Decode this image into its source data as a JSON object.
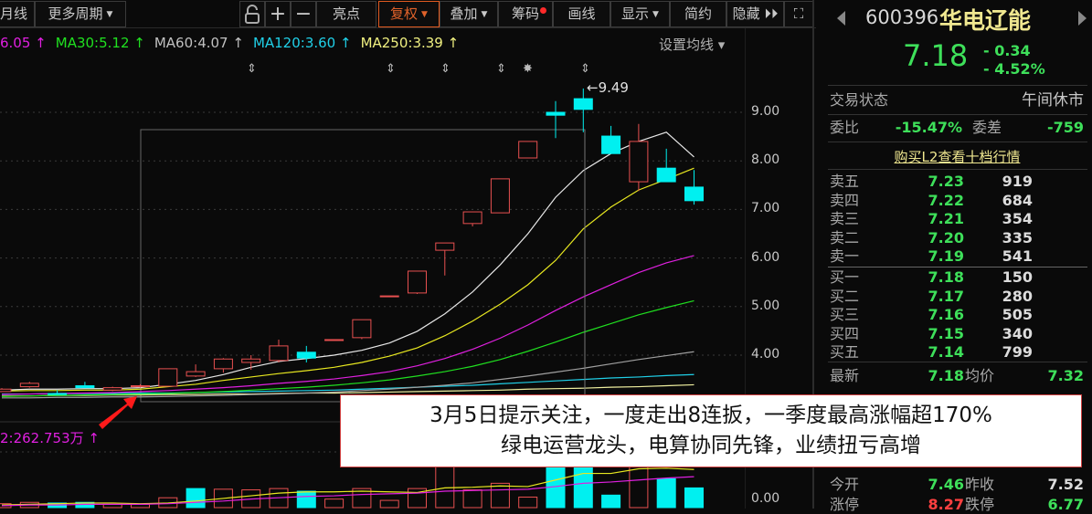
{
  "toolbar": {
    "items": [
      {
        "label": "月线",
        "caret": false
      },
      {
        "label": "更多周期",
        "caret": true
      },
      {
        "label": "亮点",
        "caret": false
      },
      {
        "label": "复权",
        "caret": true,
        "active": true
      },
      {
        "label": "叠加",
        "caret": true
      },
      {
        "label": "筹码",
        "caret": false,
        "dot": true
      },
      {
        "label": "画线",
        "caret": false
      },
      {
        "label": "显示",
        "caret": true
      },
      {
        "label": "简约",
        "caret": false
      },
      {
        "label": "隐藏 ⏵⏵",
        "caret": false
      }
    ],
    "icons": [
      "lock-open-icon",
      "zoom-in-icon",
      "zoom-out-icon",
      "fullscreen-icon"
    ]
  },
  "ma_legend": [
    {
      "text": "6.05 ↑",
      "color": "#e020e0"
    },
    {
      "text": "MA30:5.12 ↑",
      "color": "#20e020"
    },
    {
      "text": "MA60:4.07 ↑",
      "color": "#c0c0c0"
    },
    {
      "text": "MA120:3.60 ↑",
      "color": "#20d0e8"
    },
    {
      "text": "MA250:3.39 ↑",
      "color": "#f0f080"
    }
  ],
  "set_ma": "设置均线 ▾",
  "volume_label": "2:262.753万 ↑",
  "chart_data": {
    "type": "candlestick",
    "y_ticks": [
      "9.00",
      "8.00",
      "7.00",
      "6.00",
      "5.00",
      "4.00"
    ],
    "vol_ticks": [
      "0.00"
    ],
    "high_label": "←9.49",
    "candles": [
      [
        3.25,
        3.32,
        3.24,
        3.3
      ],
      [
        3.35,
        3.45,
        3.33,
        3.42
      ],
      [
        3.21,
        3.28,
        3.18,
        3.19
      ],
      [
        3.37,
        3.45,
        3.32,
        3.33
      ],
      [
        3.28,
        3.35,
        3.26,
        3.33
      ],
      [
        3.35,
        3.4,
        3.33,
        3.37
      ],
      [
        3.36,
        3.72,
        3.36,
        3.72
      ],
      [
        3.57,
        3.81,
        3.55,
        3.66
      ],
      [
        3.72,
        3.94,
        3.64,
        3.92
      ],
      [
        3.85,
        4.0,
        3.7,
        3.92
      ],
      [
        3.89,
        4.32,
        3.85,
        4.19
      ],
      [
        4.06,
        4.19,
        3.85,
        3.94
      ],
      [
        4.32,
        4.32,
        4.32,
        4.32
      ],
      [
        4.36,
        4.73,
        4.33,
        4.73
      ],
      [
        5.22,
        5.22,
        5.22,
        5.22
      ],
      [
        5.28,
        5.73,
        5.26,
        5.73
      ],
      [
        6.16,
        6.31,
        5.64,
        6.31
      ],
      [
        6.71,
        6.95,
        6.65,
        6.95
      ],
      [
        6.93,
        7.63,
        6.93,
        7.63
      ],
      [
        8.06,
        8.4,
        8.06,
        8.4
      ],
      [
        9.0,
        9.23,
        8.47,
        8.94
      ],
      [
        9.28,
        9.49,
        8.59,
        9.06
      ],
      [
        8.51,
        8.72,
        8.15,
        8.15
      ],
      [
        7.57,
        8.76,
        7.38,
        8.4
      ],
      [
        7.85,
        8.25,
        7.57,
        7.57
      ],
      [
        7.46,
        7.81,
        7.1,
        7.18
      ]
    ],
    "volume": [
      6,
      8,
      7,
      8,
      5,
      5,
      15,
      29,
      28,
      27,
      29,
      25,
      13,
      29,
      11,
      29,
      70,
      27,
      37,
      16,
      85,
      95,
      19,
      75,
      44,
      30
    ],
    "volume_up": [
      true,
      true,
      false,
      false,
      true,
      true,
      true,
      false,
      true,
      true,
      true,
      false,
      true,
      true,
      true,
      true,
      true,
      true,
      true,
      true,
      false,
      false,
      false,
      true,
      false,
      false
    ],
    "ma_lines": [
      {
        "name": "MA5",
        "color": "#e8e8e8",
        "values": [
          3.28,
          3.3,
          3.3,
          3.31,
          3.31,
          3.33,
          3.4,
          3.48,
          3.6,
          3.75,
          3.87,
          3.93,
          4.0,
          4.1,
          4.25,
          4.49,
          4.85,
          5.3,
          5.86,
          6.5,
          7.25,
          7.8,
          8.15,
          8.4,
          8.59,
          8.08
        ]
      },
      {
        "name": "MA10",
        "color": "#e8e820",
        "values": [
          3.26,
          3.27,
          3.27,
          3.28,
          3.28,
          3.3,
          3.35,
          3.4,
          3.48,
          3.55,
          3.62,
          3.68,
          3.75,
          3.85,
          3.98,
          4.15,
          4.4,
          4.7,
          5.05,
          5.45,
          5.95,
          6.6,
          7.05,
          7.4,
          7.62,
          7.85
        ]
      },
      {
        "name": "MA20",
        "color": "#e020e0",
        "values": [
          3.19,
          3.2,
          3.21,
          3.22,
          3.23,
          3.25,
          3.27,
          3.3,
          3.33,
          3.37,
          3.42,
          3.46,
          3.51,
          3.58,
          3.66,
          3.78,
          3.93,
          4.12,
          4.35,
          4.62,
          4.92,
          5.2,
          5.45,
          5.7,
          5.9,
          6.05
        ]
      },
      {
        "name": "MA30",
        "color": "#20e020",
        "values": [
          3.15,
          3.16,
          3.17,
          3.18,
          3.19,
          3.2,
          3.21,
          3.23,
          3.25,
          3.28,
          3.31,
          3.34,
          3.38,
          3.43,
          3.49,
          3.57,
          3.66,
          3.77,
          3.91,
          4.08,
          4.27,
          4.47,
          4.65,
          4.83,
          4.98,
          5.12
        ]
      },
      {
        "name": "MA60",
        "color": "#a0a0a0",
        "values": [
          3.12,
          3.12,
          3.13,
          3.13,
          3.14,
          3.14,
          3.15,
          3.16,
          3.17,
          3.19,
          3.2,
          3.22,
          3.24,
          3.27,
          3.3,
          3.34,
          3.38,
          3.43,
          3.5,
          3.57,
          3.65,
          3.73,
          3.82,
          3.91,
          3.99,
          4.07
        ]
      },
      {
        "name": "MA120",
        "color": "#20d0e8",
        "values": [
          3.2,
          3.2,
          3.21,
          3.21,
          3.21,
          3.22,
          3.22,
          3.23,
          3.24,
          3.25,
          3.26,
          3.27,
          3.28,
          3.3,
          3.32,
          3.34,
          3.36,
          3.38,
          3.41,
          3.44,
          3.47,
          3.5,
          3.53,
          3.55,
          3.58,
          3.6
        ]
      },
      {
        "name": "MA250",
        "color": "#f0f0a0",
        "values": [
          3.16,
          3.16,
          3.17,
          3.17,
          3.18,
          3.18,
          3.19,
          3.19,
          3.2,
          3.2,
          3.21,
          3.22,
          3.22,
          3.23,
          3.24,
          3.25,
          3.26,
          3.27,
          3.28,
          3.3,
          3.31,
          3.32,
          3.34,
          3.35,
          3.37,
          3.39
        ]
      }
    ],
    "vol_ma": [
      {
        "color": "#e8e820",
        "values": [
          4,
          5,
          6,
          7,
          7,
          6,
          7,
          10,
          14,
          18,
          22,
          24,
          24,
          25,
          24,
          23,
          30,
          31,
          33,
          32,
          42,
          52,
          52,
          59,
          60,
          58
        ]
      },
      {
        "color": "#e020e0",
        "values": [
          3,
          4,
          4,
          5,
          5,
          5,
          6,
          8,
          10,
          13,
          15,
          17,
          18,
          20,
          21,
          22,
          25,
          26,
          27,
          28,
          32,
          37,
          39,
          42,
          45,
          47
        ]
      }
    ]
  },
  "quote": {
    "code": "600396",
    "name": "华电辽能",
    "price": "7.18",
    "change": "- 0.34",
    "change_pct": "- 4.52%",
    "status_label": "交易状态",
    "status": "午间休市",
    "wb_label": "委比",
    "wb": "-15.47%",
    "wc_label": "委差",
    "wc": "-759",
    "l2_link": "购买L2查看十档行情",
    "asks": [
      {
        "label": "卖五",
        "price": "7.23",
        "vol": "919"
      },
      {
        "label": "卖四",
        "price": "7.22",
        "vol": "684"
      },
      {
        "label": "卖三",
        "price": "7.21",
        "vol": "354"
      },
      {
        "label": "卖二",
        "price": "7.20",
        "vol": "335"
      },
      {
        "label": "卖一",
        "price": "7.19",
        "vol": "541"
      }
    ],
    "bids": [
      {
        "label": "买一",
        "price": "7.18",
        "vol": "150"
      },
      {
        "label": "买二",
        "price": "7.17",
        "vol": "280"
      },
      {
        "label": "买三",
        "price": "7.16",
        "vol": "505"
      },
      {
        "label": "买四",
        "price": "7.15",
        "vol": "340"
      },
      {
        "label": "买五",
        "price": "7.14",
        "vol": "799"
      }
    ],
    "stats": [
      {
        "l": "最新",
        "v": "7.18",
        "vc": "#3ee05a",
        "l2": "均价",
        "v2": "7.32",
        "v2c": "#3ee05a"
      },
      {
        "l": "今开",
        "v": "7.46",
        "vc": "#3ee05a",
        "l2": "昨收",
        "v2": "7.52",
        "v2c": "#dcdcdc"
      },
      {
        "l": "涨停",
        "v": "8.27",
        "vc": "#ff4040",
        "l2": "跌停",
        "v2": "6.77",
        "v2c": "#3ee05a"
      }
    ]
  },
  "annotation": {
    "line1": "3月5日提示关注，一度走出8连扳，一季度最高涨幅超170%",
    "line2": "绿电运营龙头，电算协同先锋，业绩扭亏高增"
  }
}
